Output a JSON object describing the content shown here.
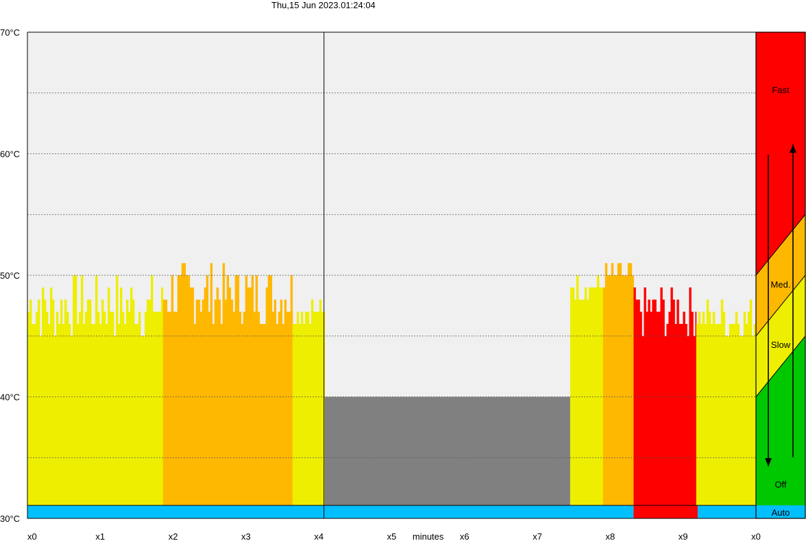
{
  "header": {
    "timestamp": "Thu,15 Jun 2023.01:24:04"
  },
  "colors": {
    "background": "#f0f0f0",
    "off": "#808080",
    "slow": "#eeee00",
    "medium": "#ffb800",
    "fast": "#ff0000",
    "auto": "#00bfff",
    "legend_off": "#00c800"
  },
  "chart_data": {
    "type": "bar",
    "title": "Thu,15 Jun 2023.01:24:04",
    "xlabel": "minutes",
    "ylabel": "",
    "ylim": [
      30,
      70
    ],
    "y_ticks": [
      "30°C",
      "40°C",
      "50°C",
      "60°C",
      "70°C"
    ],
    "x_ticks": [
      "x0",
      "x1",
      "x2",
      "x3",
      "x4",
      "x5",
      "x6",
      "x7",
      "x8",
      "x9",
      "x0"
    ],
    "grid": "horizontal dotted every 5°C",
    "segments": [
      {
        "x": [
          0.0,
          1.86
        ],
        "mode": "Slow",
        "temp_range": [
          45,
          50
        ]
      },
      {
        "x": [
          1.86,
          3.64
        ],
        "mode": "Med.",
        "temp_range": [
          46,
          51
        ]
      },
      {
        "x": [
          3.64,
          4.08
        ],
        "mode": "Slow",
        "temp_range": [
          46,
          48
        ]
      },
      {
        "x": [
          4.08,
          7.45
        ],
        "mode": "Off",
        "temp_range": [
          40,
          40
        ]
      },
      {
        "x": [
          7.45,
          7.9
        ],
        "mode": "Slow",
        "temp_range": [
          48,
          50
        ]
      },
      {
        "x": [
          7.9,
          8.32
        ],
        "mode": "Med.",
        "temp_range": [
          49,
          51
        ]
      },
      {
        "x": [
          8.32,
          9.18
        ],
        "mode": "Fast",
        "temp_range": [
          45,
          49
        ]
      },
      {
        "x": [
          9.18,
          10.0
        ],
        "mode": "Slow",
        "temp_range": [
          45,
          48
        ]
      }
    ],
    "auto_bar": [
      {
        "x": [
          0.0,
          8.32
        ],
        "state": "Auto"
      },
      {
        "x": [
          8.32,
          9.2
        ],
        "state": "Fast"
      },
      {
        "x": [
          9.2,
          10.0
        ],
        "state": "Auto"
      }
    ],
    "legend": {
      "levels": [
        "Fast",
        "Med.",
        "Slow",
        "Off",
        "Auto"
      ],
      "thresholds": {
        "off_slow": [
          40,
          45
        ],
        "slow_med": [
          45,
          50
        ],
        "med_fast": [
          50,
          55
        ]
      }
    }
  }
}
